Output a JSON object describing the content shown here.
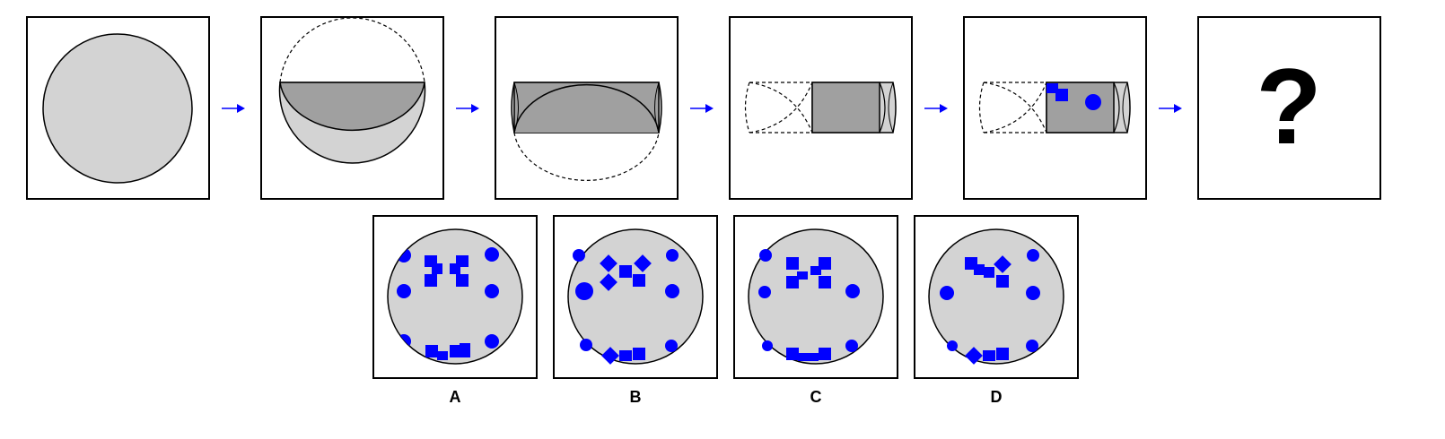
{
  "colors": {
    "light": "#d3d3d3",
    "dark": "#a0a0a0",
    "blue": "#0000ff",
    "arrow": "#0000ff",
    "stroke": "#000000"
  },
  "question_mark": "?",
  "options": [
    {
      "label": "A"
    },
    {
      "label": "B"
    },
    {
      "label": "C"
    },
    {
      "label": "D"
    }
  ]
}
